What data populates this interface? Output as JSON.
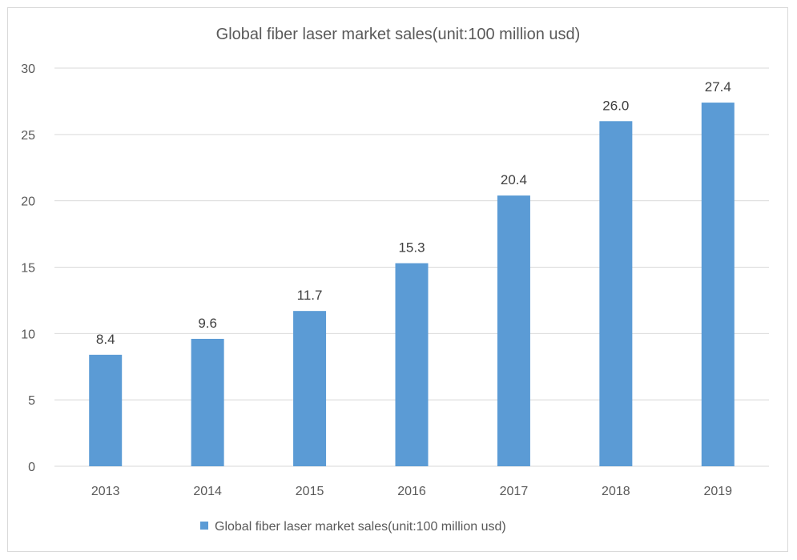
{
  "chart_data": {
    "type": "bar",
    "title": "Global fiber laser market sales(unit:100 million usd)",
    "categories": [
      "2013",
      "2014",
      "2015",
      "2016",
      "2017",
      "2018",
      "2019"
    ],
    "series": [
      {
        "name": "Global fiber laser market sales(unit:100 million usd)",
        "values": [
          8.4,
          9.6,
          11.7,
          15.3,
          20.4,
          26.0,
          27.4
        ],
        "labels": [
          "8.4",
          "9.6",
          "11.7",
          "15.3",
          "20.4",
          "26.0",
          "27.4"
        ],
        "color": "#5b9bd5"
      }
    ],
    "xlabel": "",
    "ylabel": "",
    "ylim": [
      0,
      30
    ],
    "yticks": [
      "0",
      "5",
      "10",
      "15",
      "20",
      "25",
      "30"
    ],
    "grid": true,
    "legend": "bottom"
  }
}
